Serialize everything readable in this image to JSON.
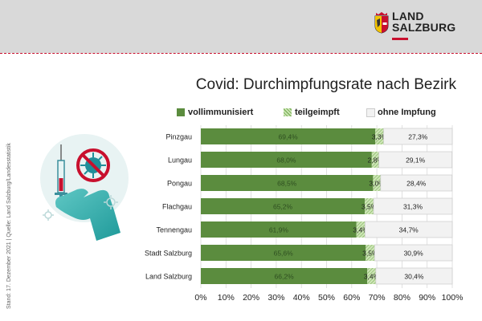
{
  "header": {
    "logo_line1": "LAND",
    "logo_line2": "SALZBURG"
  },
  "side_note": "Stand: 17. Dezember 2021 | Quelle: Land Salzburg/Landesstatistik",
  "colors": {
    "vollimmunisiert": "#5b8c3e",
    "teilgeimpft": "#cfe6b8",
    "ohne_impfung": "#f2f2f2",
    "accent": "#c8102e"
  },
  "chart_data": {
    "type": "bar",
    "orientation": "horizontal",
    "stacked": true,
    "title": "Covid: Durchimpfungsrate nach Bezirk",
    "categories": [
      "Pinzgau",
      "Lungau",
      "Pongau",
      "Flachgau",
      "Tennengau",
      "Stadt Salzburg",
      "Land Salzburg"
    ],
    "series": [
      {
        "name": "vollimmunisiert",
        "values": [
          69.4,
          68.0,
          68.5,
          65.2,
          61.9,
          65.6,
          66.2
        ],
        "labels": [
          "69,4%",
          "68,0%",
          "68,5%",
          "65,2%",
          "61,9%",
          "65,6%",
          "66,2%"
        ]
      },
      {
        "name": "teilgeimpft",
        "values": [
          3.3,
          2.8,
          3.0,
          3.5,
          3.4,
          3.5,
          3.4
        ],
        "labels": [
          "3,3%",
          "2,8%",
          "3,0%",
          "3,5%",
          "3,4%",
          "3,5%",
          "3,4%"
        ]
      },
      {
        "name": "ohne Impfung",
        "values": [
          27.3,
          29.1,
          28.4,
          31.3,
          34.7,
          30.9,
          30.4
        ],
        "labels": [
          "27,3%",
          "29,1%",
          "28,4%",
          "31,3%",
          "34,7%",
          "30,9%",
          "30,4%"
        ]
      }
    ],
    "xlim": [
      0,
      100
    ],
    "xticks": [
      "0%",
      "10%",
      "20%",
      "30%",
      "40%",
      "50%",
      "60%",
      "70%",
      "80%",
      "90%",
      "100%"
    ],
    "legend": "top",
    "grid": true
  }
}
